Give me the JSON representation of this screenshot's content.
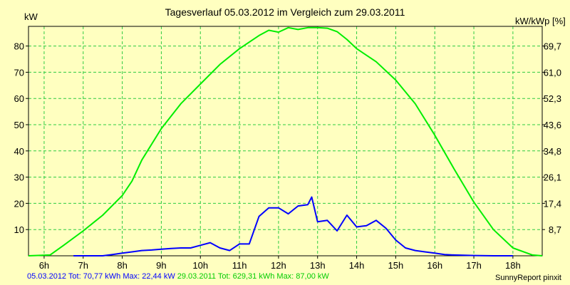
{
  "colors": {
    "background": "#ffffc0",
    "grid": "#2ecc40",
    "series_current": "#0000ff",
    "series_reference": "#00ee00"
  },
  "chart_data": {
    "type": "line",
    "title": "Tagesverlauf 05.03.2012 im Vergleich zum 29.03.2011",
    "ylabel_left": "kW",
    "ylabel_right": "kW/kWp [%]",
    "xlim": [
      5.6,
      18.75
    ],
    "ylim": [
      0,
      87.5
    ],
    "x_ticks": [
      "6h",
      "7h",
      "8h",
      "9h",
      "10h",
      "11h",
      "12h",
      "13h",
      "14h",
      "15h",
      "16h",
      "17h",
      "18h"
    ],
    "x_tick_values": [
      6,
      7,
      8,
      9,
      10,
      11,
      12,
      13,
      14,
      15,
      16,
      17,
      18
    ],
    "y_ticks_left": [
      "10",
      "20",
      "30",
      "40",
      "50",
      "60",
      "70",
      "80"
    ],
    "y_tick_values": [
      10,
      20,
      30,
      40,
      50,
      60,
      70,
      80
    ],
    "y_ticks_right": [
      "8,7",
      "17,4",
      "26,1",
      "34,8",
      "43,6",
      "52,3",
      "61,0",
      "69,7"
    ],
    "grid": true,
    "series": [
      {
        "key": "current",
        "color": "#0000ff",
        "x": [
          6.75,
          7.5,
          7.75,
          8.0,
          8.25,
          8.5,
          8.75,
          9.0,
          9.25,
          9.5,
          9.75,
          10.0,
          10.25,
          10.5,
          10.75,
          11.0,
          11.25,
          11.5,
          11.75,
          12.0,
          12.25,
          12.5,
          12.75,
          12.85,
          13.0,
          13.25,
          13.5,
          13.75,
          14.0,
          14.25,
          14.5,
          14.75,
          15.0,
          15.25,
          15.5,
          15.75,
          16.0,
          16.25,
          16.5,
          16.75,
          17.0,
          17.5,
          18.0
        ],
        "y": [
          0,
          0,
          0.5,
          1,
          1.5,
          2,
          2.2,
          2.5,
          2.8,
          3,
          3,
          4,
          5,
          3,
          2,
          4.5,
          4.5,
          15,
          18.3,
          18.3,
          16,
          19,
          19.5,
          22.4,
          13,
          13.5,
          9.5,
          15.5,
          11,
          11.5,
          13.5,
          10.5,
          6,
          3,
          2,
          1.5,
          1,
          0.5,
          0.3,
          0.2,
          0.1,
          0,
          0
        ]
      },
      {
        "key": "reference",
        "color": "#00ee00",
        "x": [
          5.6,
          6.15,
          6.5,
          7.0,
          7.5,
          8.0,
          8.25,
          8.5,
          9.0,
          9.5,
          10.0,
          10.5,
          11.0,
          11.5,
          11.75,
          12.0,
          12.25,
          12.5,
          12.75,
          13.0,
          13.25,
          13.5,
          13.75,
          14.0,
          14.5,
          15.0,
          15.5,
          16.0,
          16.5,
          17.0,
          17.5,
          18.0,
          18.5,
          18.75
        ],
        "y": [
          0,
          0.3,
          4,
          9.5,
          15.5,
          23,
          28.5,
          36.5,
          48.5,
          58,
          65.5,
          73,
          79,
          84,
          86,
          85.3,
          87,
          86.3,
          87,
          87,
          86.8,
          85.5,
          82.5,
          79,
          74,
          67,
          58,
          46,
          33,
          20.5,
          10,
          3,
          0.3,
          0
        ]
      }
    ]
  },
  "footer": {
    "current_label": "05.03.2012 Tot: 70,77 kWh Max: 22,44 kW",
    "reference_label": "29.03.2011 Tot: 629,31 kWh Max: 87,00 kW",
    "credit": "SunnyReport pinxit"
  }
}
